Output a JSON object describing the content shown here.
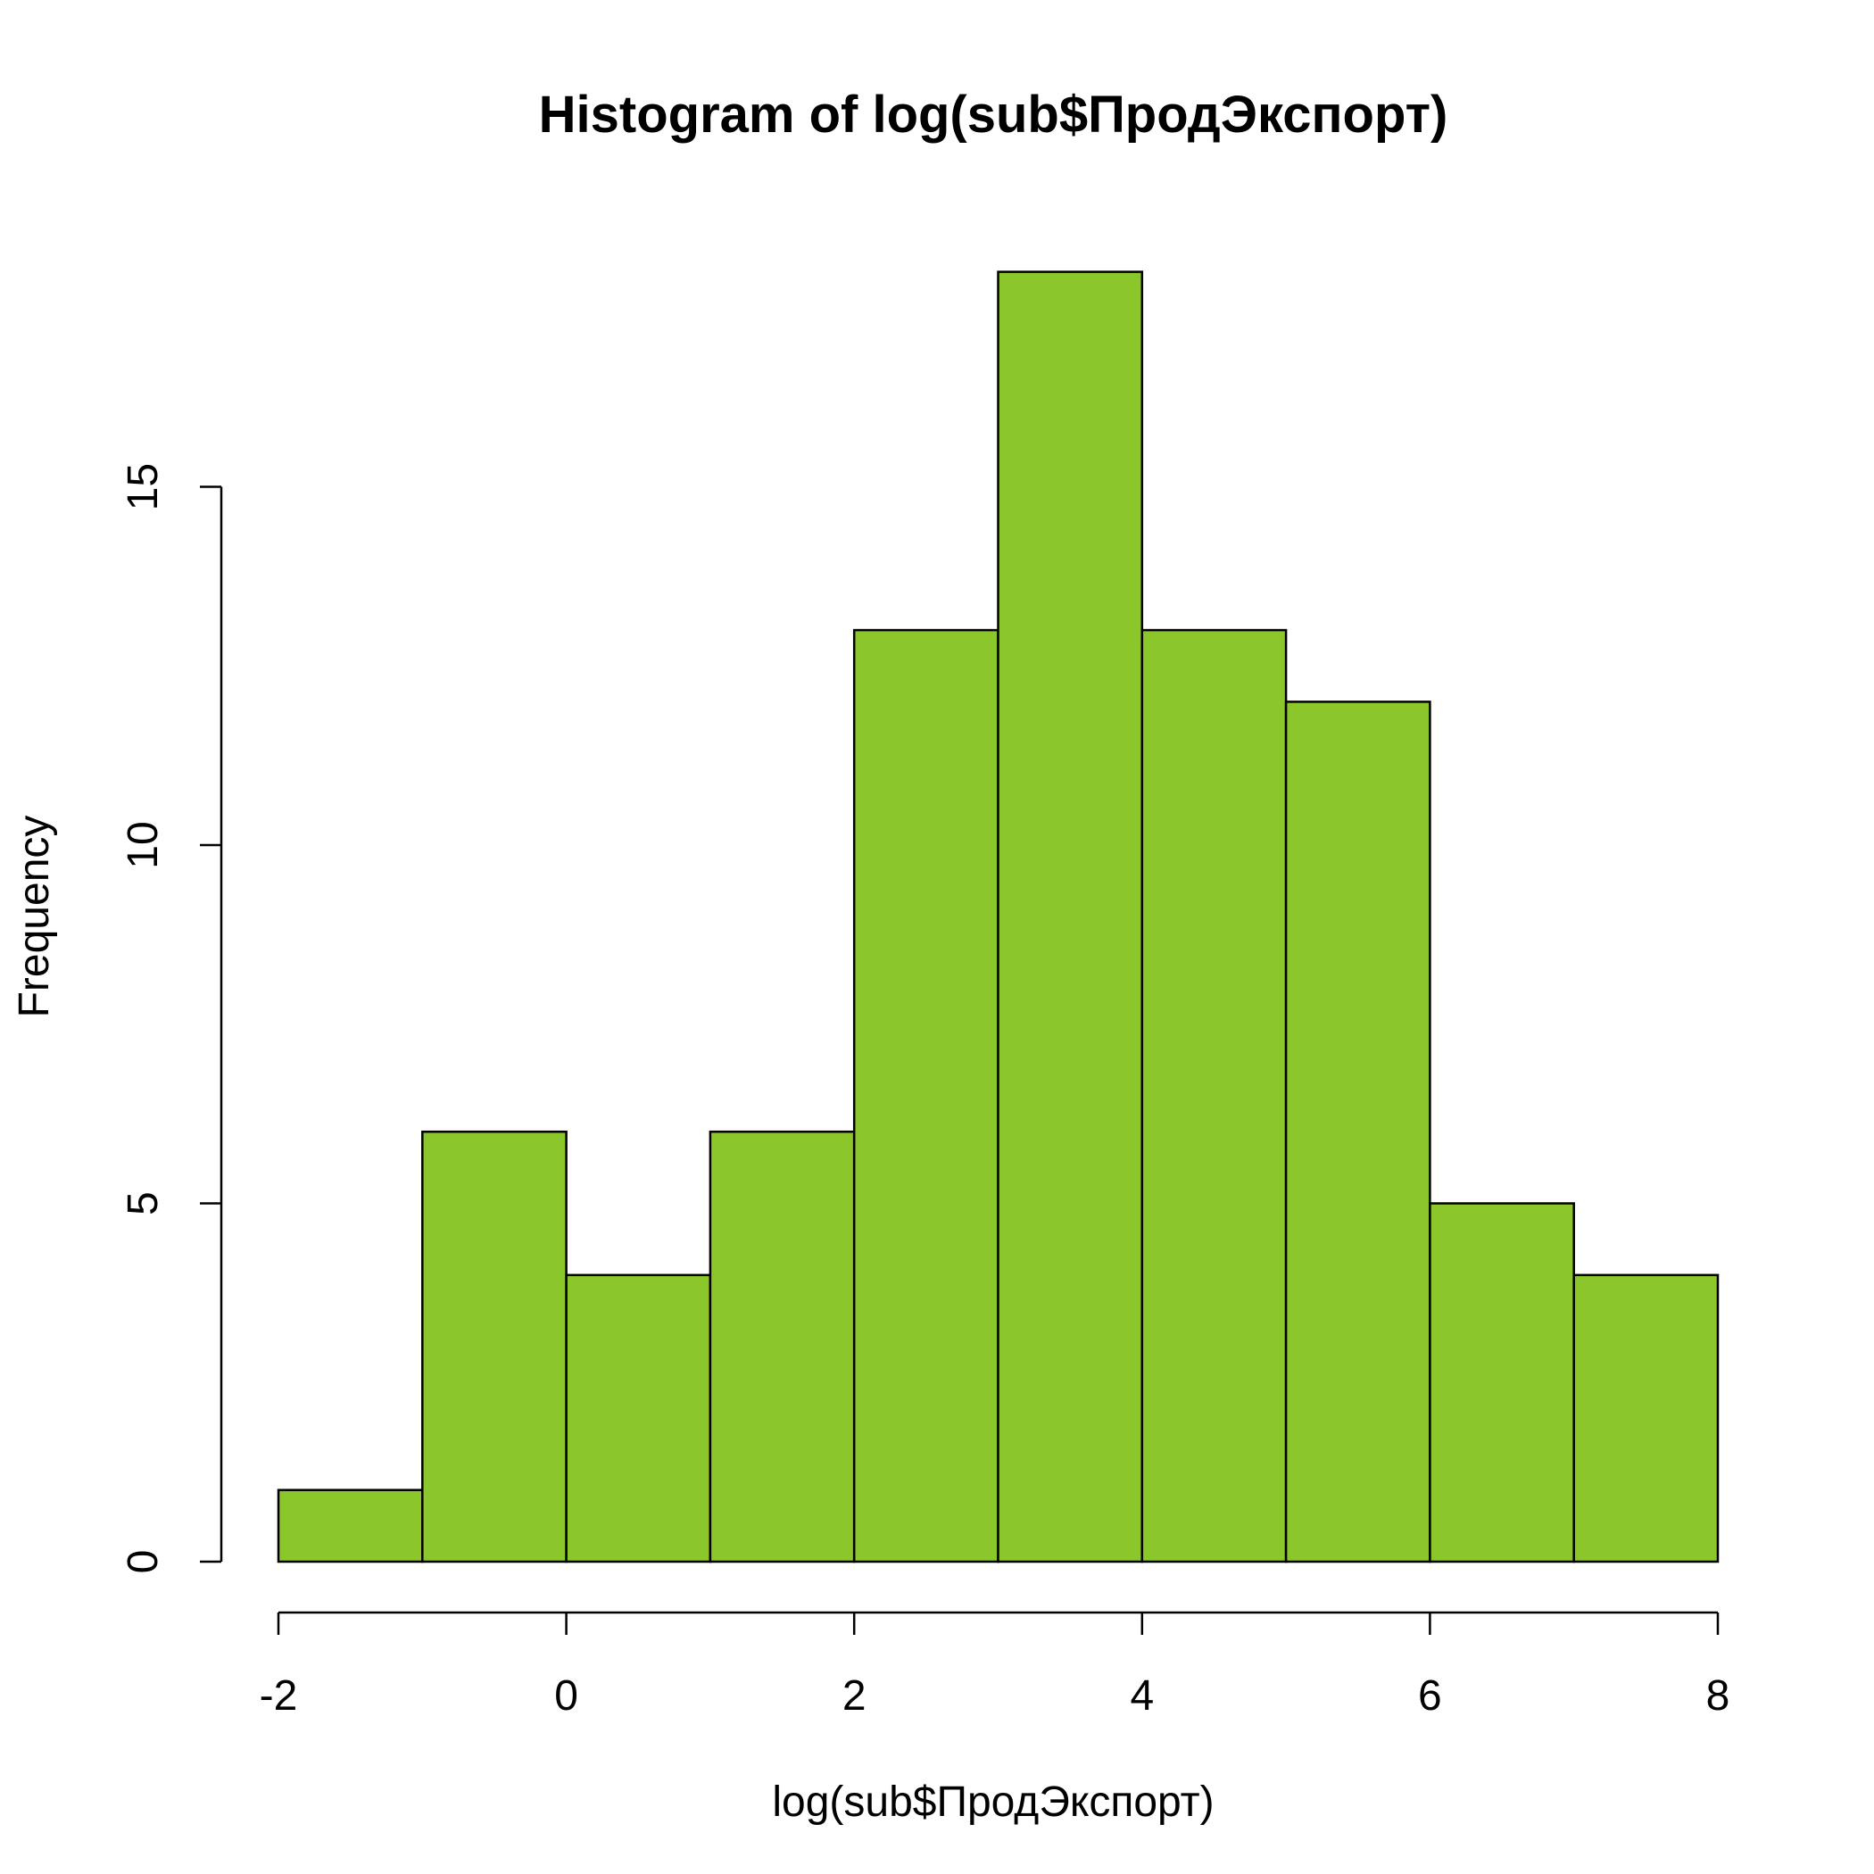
{
  "chart_data": {
    "type": "bar",
    "subtype": "histogram",
    "title": "Histogram of log(sub$ПродЭкспорт)",
    "xlabel": "log(sub$ПродЭкспорт)",
    "ylabel": "Frequency",
    "bins": [
      {
        "start": -2,
        "end": -1,
        "count": 1
      },
      {
        "start": -1,
        "end": 0,
        "count": 6
      },
      {
        "start": 0,
        "end": 1,
        "count": 4
      },
      {
        "start": 1,
        "end": 2,
        "count": 6
      },
      {
        "start": 2,
        "end": 3,
        "count": 13
      },
      {
        "start": 3,
        "end": 4,
        "count": 18
      },
      {
        "start": 4,
        "end": 5,
        "count": 13
      },
      {
        "start": 5,
        "end": 6,
        "count": 12
      },
      {
        "start": 6,
        "end": 7,
        "count": 5
      },
      {
        "start": 7,
        "end": 8,
        "count": 4
      }
    ],
    "xlim": [
      -2,
      8
    ],
    "ylim": [
      0,
      18
    ],
    "x_ticks": [
      -2,
      0,
      2,
      4,
      6,
      8
    ],
    "x_tick_labels": [
      "-2",
      "0",
      "2",
      "4",
      "6",
      "8"
    ],
    "y_ticks": [
      0,
      5,
      10,
      15
    ],
    "y_tick_labels": [
      "0",
      "5",
      "10",
      "15"
    ],
    "bar_color": "#8BC72A",
    "border_color": "#000000",
    "grid": false,
    "legend": "none"
  }
}
